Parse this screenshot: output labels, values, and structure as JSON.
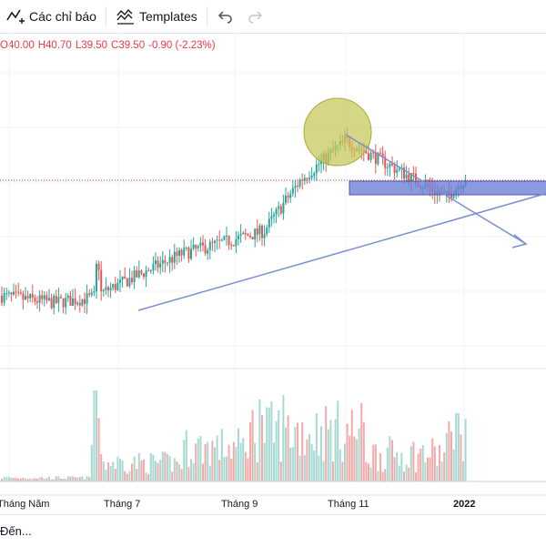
{
  "toolbar": {
    "indicators_label": "Các chỉ báo",
    "templates_label": "Templates",
    "indicators_icon": "indicators-icon",
    "templates_icon": "templates-icon",
    "undo_icon": "undo-icon",
    "redo_icon": "redo-icon"
  },
  "ohlc": {
    "o": "O40.00",
    "h": "H40.70",
    "l": "L39.50",
    "c": "C39.50",
    "change": "-0.90 (-2.23%)"
  },
  "footer": {
    "goto_label": "Đến..."
  },
  "colors": {
    "up": "#26a69a",
    "down": "#ef5350",
    "vol_up": "#a7d9d2",
    "vol_down": "#f5a9a9",
    "drawing": "#7b8fd0",
    "zone_fill": "#6b7fd7",
    "circle": "#c6c757"
  },
  "chart_data": {
    "type": "candlestick",
    "x_labels": [
      "Tháng Năm",
      "Tháng 7",
      "Tháng 9",
      "Tháng 11",
      "2022"
    ],
    "close_price_line": 39.5,
    "trend": [
      {
        "date": "Tháng Năm",
        "price": 29.8
      },
      {
        "date": "Tháng 6",
        "price": 29.2
      },
      {
        "date": "Tháng 7",
        "price": 29.6
      },
      {
        "date": "Tháng 8",
        "price": 33.5
      },
      {
        "date": "Tháng 9",
        "price": 35.5
      },
      {
        "date": "Tháng 10",
        "price": 40.0
      },
      {
        "date": "Tháng 11",
        "price": 43.5
      },
      {
        "date": "Tháng 12",
        "price": 38.5
      },
      {
        "date": "2022",
        "price": 40.2
      }
    ]
  }
}
